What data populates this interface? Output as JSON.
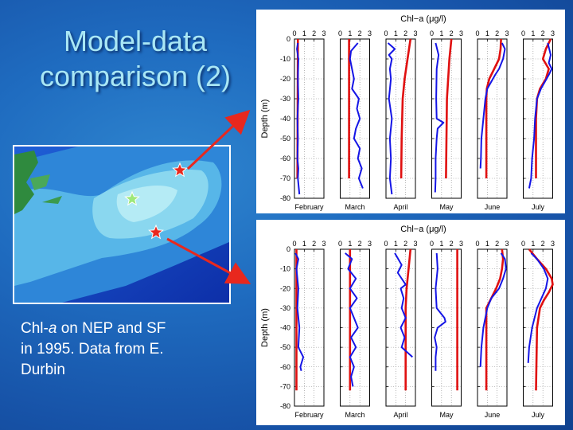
{
  "slide": {
    "title_line1": "Model-data",
    "title_line2": "comparison (2)",
    "caption_line1": "Chl-",
    "caption_italic": "a",
    "caption_line1_rest": " on NEP and SF",
    "caption_line2": "in 1995. Data from E.",
    "caption_line3": "Durbin"
  },
  "map": {
    "markers": [
      {
        "name": "red-star-nep",
        "color": "#e8281e"
      },
      {
        "name": "green-star",
        "color": "#9ee87a"
      },
      {
        "name": "red-star-sf",
        "color": "#e8281e"
      }
    ],
    "arrow_color": "#e8281e"
  },
  "colors": {
    "observed": "#1515e6",
    "model": "#e01010"
  },
  "chart_data": [
    {
      "type": "line",
      "title": "Chl−a (μg/l)",
      "ylabel": "Depth (m)",
      "ylim": [
        -80,
        0
      ],
      "yticks": [
        0,
        -10,
        -20,
        -30,
        -40,
        -50,
        -60,
        -70,
        -80
      ],
      "xlim": [
        0,
        3
      ],
      "xticks": [
        0,
        1,
        2,
        3
      ],
      "grid": true,
      "panels": [
        {
          "month": "February",
          "observed": {
            "depth": [
              -2,
              -5,
              -10,
              -20,
              -30,
              -40,
              -50,
              -60,
              -65,
              -70,
              -75,
              -78
            ],
            "value": [
              0.35,
              0.25,
              0.4,
              0.35,
              0.4,
              0.3,
              0.35,
              0.3,
              0.4,
              0.35,
              0.45,
              0.5
            ]
          },
          "model": {
            "depth": [
              0,
              -70
            ],
            "value": [
              0.35,
              0.3
            ]
          }
        },
        {
          "month": "March",
          "observed": {
            "depth": [
              -2,
              -6,
              -10,
              -15,
              -20,
              -25,
              -30,
              -35,
              -40,
              -45,
              -50,
              -55,
              -60,
              -65,
              -70,
              -75
            ],
            "value": [
              1.8,
              1.1,
              1.0,
              1.2,
              1.4,
              1.2,
              1.9,
              1.7,
              2.0,
              1.6,
              1.4,
              2.0,
              1.8,
              2.2,
              1.9,
              2.3
            ]
          },
          "model": {
            "depth": [
              0,
              -70
            ],
            "value": [
              0.9,
              0.9
            ]
          }
        },
        {
          "month": "April",
          "observed": {
            "depth": [
              -2,
              -5,
              -8,
              -10,
              -15,
              -20,
              -30,
              -40,
              -50,
              -60,
              -70,
              -78
            ],
            "value": [
              0.2,
              0.9,
              0.3,
              0.6,
              0.4,
              0.5,
              0.3,
              0.6,
              0.4,
              0.5,
              0.4,
              0.6
            ]
          },
          "model": {
            "depth": [
              0,
              -10,
              -20,
              -30,
              -50,
              -70
            ],
            "value": [
              2.5,
              2.2,
              1.9,
              1.7,
              1.6,
              1.55
            ]
          }
        },
        {
          "month": "May",
          "observed": {
            "depth": [
              -2,
              -8,
              -15,
              -30,
              -40,
              -42,
              -45,
              -50,
              -60,
              -70,
              -77
            ],
            "value": [
              0.4,
              0.7,
              0.5,
              0.45,
              0.5,
              1.2,
              0.6,
              0.5,
              0.4,
              0.4,
              0.35
            ]
          },
          "model": {
            "depth": [
              0,
              -10,
              -30,
              -70
            ],
            "value": [
              2.0,
              1.8,
              1.55,
              1.45
            ]
          }
        },
        {
          "month": "June",
          "observed": {
            "depth": [
              -2,
              -5,
              -10,
              -15,
              -18,
              -25,
              -30,
              -40,
              -50,
              -60,
              -65
            ],
            "value": [
              2.5,
              2.8,
              2.6,
              2.2,
              1.8,
              1.0,
              0.8,
              0.6,
              0.4,
              0.35,
              0.3
            ]
          },
          "model": {
            "depth": [
              0,
              -5,
              -10,
              -15,
              -20,
              -25,
              -30,
              -70
            ],
            "value": [
              2.4,
              2.35,
              2.2,
              1.7,
              1.2,
              0.95,
              0.9,
              0.9
            ]
          }
        },
        {
          "month": "July",
          "observed": {
            "depth": [
              -2,
              -8,
              -12,
              -15,
              -18,
              -25,
              -30,
              -40,
              -50,
              -60,
              -70,
              -75
            ],
            "value": [
              2.5,
              2.8,
              2.6,
              2.9,
              2.6,
              1.8,
              1.4,
              1.2,
              1.1,
              0.9,
              0.8,
              0.6
            ]
          },
          "model": {
            "depth": [
              0,
              -5,
              -10,
              -15,
              -20,
              -25,
              -30,
              -40,
              -70
            ],
            "value": [
              2.8,
              2.3,
              2.0,
              2.6,
              2.3,
              1.7,
              1.4,
              1.3,
              1.3
            ]
          }
        }
      ]
    },
    {
      "type": "line",
      "title": "Chl−a (μg/l)",
      "ylabel": "Depth (m)",
      "ylim": [
        -80,
        0
      ],
      "yticks": [
        0,
        -10,
        -20,
        -30,
        -40,
        -50,
        -60,
        -70,
        -80
      ],
      "xlim": [
        0,
        3
      ],
      "xticks": [
        0,
        1,
        2,
        3
      ],
      "grid": true,
      "panels": [
        {
          "month": "February",
          "observed": {
            "depth": [
              -2,
              -5,
              -10,
              -20,
              -30,
              -40,
              -50,
              -55,
              -60,
              -62
            ],
            "value": [
              0.1,
              0.4,
              0.2,
              0.4,
              0.3,
              0.5,
              0.4,
              0.9,
              0.6,
              0.7
            ]
          },
          "model": {
            "depth": [
              0,
              -72
            ],
            "value": [
              0.2,
              0.2
            ]
          }
        },
        {
          "month": "March",
          "observed": {
            "depth": [
              -2,
              -5,
              -10,
              -15,
              -20,
              -25,
              -30,
              -35,
              -40,
              -45,
              -50,
              -55,
              -60,
              -65,
              -70
            ],
            "value": [
              0.5,
              1.2,
              0.8,
              1.6,
              1.0,
              1.7,
              1.0,
              1.4,
              1.8,
              1.1,
              1.6,
              1.0,
              1.4,
              1.1,
              1.3
            ]
          },
          "model": {
            "depth": [
              0,
              -72
            ],
            "value": [
              1.0,
              1.0
            ]
          }
        },
        {
          "month": "April",
          "observed": {
            "depth": [
              -2,
              -8,
              -12,
              -18,
              -20,
              -25,
              -30,
              -35,
              -40,
              -45,
              -50,
              -55
            ],
            "value": [
              0.9,
              1.6,
              1.2,
              2.0,
              1.5,
              1.8,
              1.6,
              2.0,
              1.5,
              1.9,
              1.6,
              2.7
            ]
          },
          "model": {
            "depth": [
              0,
              -10,
              -20,
              -30,
              -72
            ],
            "value": [
              2.5,
              2.3,
              2.1,
              2.0,
              2.0
            ]
          }
        },
        {
          "month": "May",
          "observed": {
            "depth": [
              -2,
              -10,
              -20,
              -30,
              -35,
              -37,
              -40,
              -45,
              -50,
              -55,
              -62
            ],
            "value": [
              0.5,
              0.6,
              0.4,
              0.5,
              1.3,
              1.4,
              0.6,
              0.3,
              0.5,
              0.4,
              0.4
            ]
          },
          "model": {
            "depth": [
              0,
              -72
            ],
            "value": [
              2.6,
              2.6
            ]
          }
        },
        {
          "month": "June",
          "observed": {
            "depth": [
              -2,
              -5,
              -10,
              -15,
              -20,
              -25,
              -30,
              -40,
              -50,
              -60
            ],
            "value": [
              2.4,
              2.8,
              2.9,
              2.6,
              2.2,
              1.4,
              1.0,
              0.6,
              0.4,
              0.3
            ]
          },
          "model": {
            "depth": [
              0,
              -5,
              -10,
              -15,
              -20,
              -25,
              -30,
              -72
            ],
            "value": [
              2.5,
              2.6,
              2.5,
              2.3,
              1.9,
              1.4,
              0.9,
              0.9
            ]
          }
        },
        {
          "month": "July",
          "observed": {
            "depth": [
              -2,
              -5,
              -10,
              -15,
              -20,
              -30,
              -40,
              -50,
              -58
            ],
            "value": [
              0.8,
              1.4,
              2.1,
              2.5,
              2.3,
              1.4,
              0.9,
              0.6,
              0.5
            ]
          },
          "model": {
            "depth": [
              0,
              -5,
              -10,
              -15,
              -18,
              -22,
              -26,
              -30,
              -40,
              -72
            ],
            "value": [
              0.6,
              1.4,
              2.3,
              2.9,
              3.0,
              2.6,
              2.1,
              1.7,
              1.4,
              1.3
            ]
          }
        }
      ]
    }
  ]
}
